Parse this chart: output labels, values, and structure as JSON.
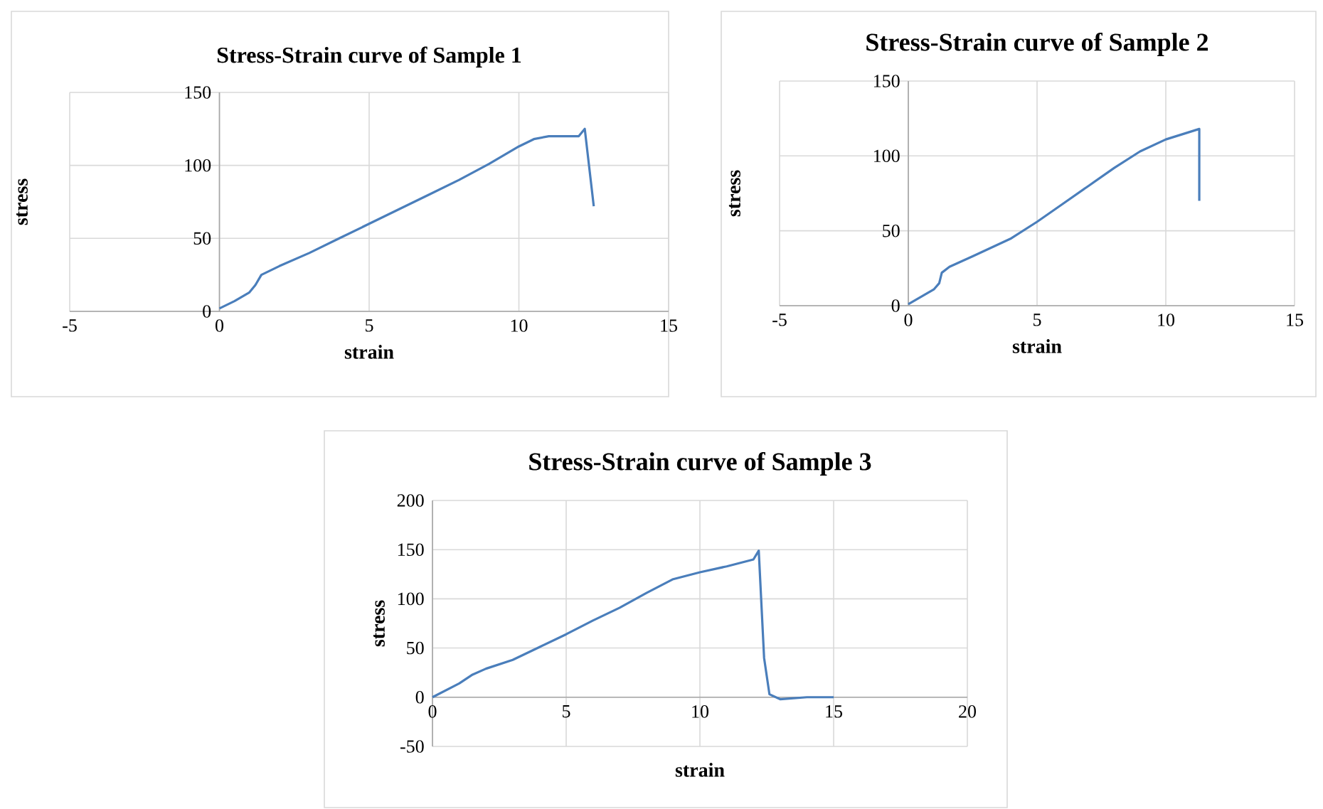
{
  "chart_data": [
    {
      "type": "line",
      "title": "Stress-Strain curve of Sample 1",
      "xlabel": "strain",
      "ylabel": "stress",
      "xlim": [
        -5,
        15
      ],
      "ylim": [
        0,
        150
      ],
      "xticks": [
        -5,
        0,
        5,
        10,
        15
      ],
      "yticks": [
        0,
        50,
        100,
        150
      ],
      "grid": true,
      "marker": "none",
      "line_style": "solid",
      "series": [
        {
          "color": "#4a7ebb",
          "x": [
            0,
            0.5,
            1,
            1.2,
            1.4,
            2,
            3,
            4,
            5,
            6,
            7,
            8,
            9,
            10,
            10.5,
            11,
            11.5,
            12,
            12.2,
            12.5
          ],
          "values": [
            2,
            7,
            13,
            18,
            25,
            31,
            40,
            50,
            60,
            70,
            80,
            90,
            101,
            113,
            118,
            120,
            120,
            120,
            125,
            72
          ]
        }
      ]
    },
    {
      "type": "line",
      "title": "Stress-Strain curve of Sample 2",
      "xlabel": "strain",
      "ylabel": "stress",
      "xlim": [
        -5,
        15
      ],
      "ylim": [
        0,
        150
      ],
      "xticks": [
        -5,
        0,
        5,
        10,
        15
      ],
      "yticks": [
        0,
        50,
        100,
        150
      ],
      "grid": true,
      "marker": "none",
      "line_style": "solid",
      "series": [
        {
          "color": "#4a7ebb",
          "x": [
            0,
            0.5,
            1,
            1.2,
            1.3,
            1.6,
            2.5,
            4,
            5,
            6,
            7,
            8,
            9,
            10,
            11.3,
            11.3
          ],
          "values": [
            1,
            6,
            11,
            15,
            22,
            26,
            33,
            45,
            56,
            68,
            80,
            92,
            103,
            111,
            118,
            70
          ]
        }
      ]
    },
    {
      "type": "line",
      "title": "Stress-Strain curve of Sample 3",
      "xlabel": "strain",
      "ylabel": "stress",
      "xlim": [
        0,
        20
      ],
      "ylim": [
        -50,
        200
      ],
      "xticks": [
        0,
        5,
        10,
        15,
        20
      ],
      "yticks": [
        -50,
        0,
        50,
        100,
        150,
        200
      ],
      "grid": true,
      "marker": "none",
      "line_style": "solid",
      "series": [
        {
          "color": "#4a7ebb",
          "x": [
            0,
            1,
            1.5,
            2,
            3,
            4,
            5,
            6,
            7,
            8,
            9,
            10,
            11,
            12,
            12.2,
            12.4,
            12.6,
            13,
            14,
            15
          ],
          "values": [
            0,
            14,
            23,
            29,
            38,
            51,
            64,
            78,
            91,
            106,
            120,
            127,
            133,
            140,
            149,
            40,
            3,
            -2,
            0,
            0
          ]
        }
      ]
    }
  ]
}
